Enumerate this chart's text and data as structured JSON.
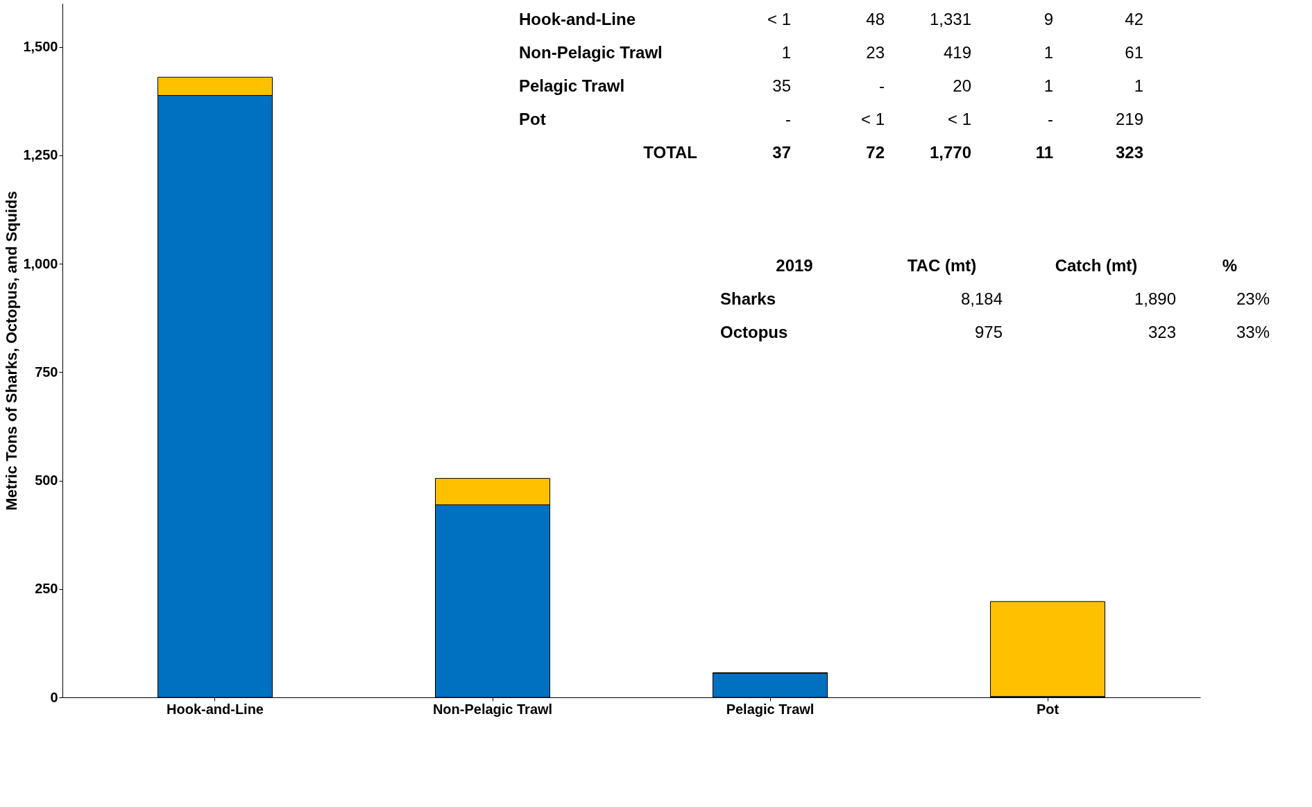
{
  "chart_data": {
    "type": "bar",
    "ylabel": "Metric Tons of Sharks, Octopus, and Squids",
    "categories": [
      "Hook-and-Line",
      "Non-Pelagic Trawl",
      "Pelagic Trawl",
      "Pot"
    ],
    "series": [
      {
        "color": "#0070c0",
        "values": [
          1388,
          444,
          56,
          2
        ]
      },
      {
        "color": "#ffc000",
        "values": [
          42,
          61,
          1,
          219
        ]
      }
    ],
    "stacked": true,
    "ylim": [
      0,
      1600
    ],
    "yticks": [
      0,
      250,
      500,
      750,
      {
        "value": 1000,
        "label": "1,000"
      },
      {
        "value": 1250,
        "label": "1,250"
      },
      {
        "value": 1500,
        "label": "1,500"
      }
    ],
    "grid": false,
    "annotations": [
      "Hook-and-Line",
      "< 1",
      "48",
      "1,331",
      "9",
      "42",
      "Non-Pelagic Trawl",
      "1",
      "23",
      "419",
      "1",
      "61",
      "Pelagic Trawl",
      "35",
      "-",
      "20",
      "1",
      "1",
      "Pot",
      "-",
      "< 1",
      "< 1",
      "-",
      "219",
      "TOTAL",
      "37",
      "72",
      "1,770",
      "11",
      "323",
      "2019",
      "TAC (mt)",
      "Catch (mt)",
      "%",
      "Sharks",
      "8,184",
      "1,890",
      "23%",
      "Octopus",
      "975",
      "323",
      "33%"
    ]
  }
}
